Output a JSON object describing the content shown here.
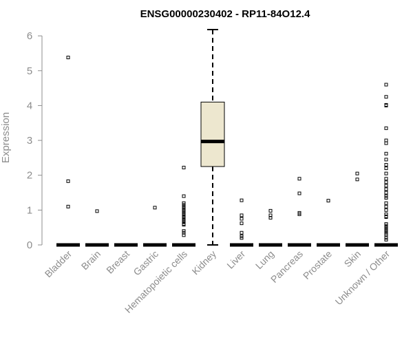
{
  "chart_data": {
    "type": "box",
    "title": "ENSG00000230402 - RP11-84O12.4",
    "xlabel": "",
    "ylabel": "Expression",
    "ylim": [
      0,
      6.2
    ],
    "yticks": [
      0,
      1,
      2,
      3,
      4,
      5,
      6
    ],
    "box_fill": "#ede7cf",
    "categories": [
      "Bladder",
      "Brain",
      "Breast",
      "Gastric",
      "Hematopoietic cells",
      "Kidney",
      "Liver",
      "Lung",
      "Pancreas",
      "Prostate",
      "Skin",
      "Unknown / Other"
    ],
    "series": [
      {
        "category": "Bladder",
        "min": 0,
        "q1": 0,
        "median": 0,
        "q3": 0,
        "max": 0,
        "outliers": [
          5.38,
          1.83,
          1.1
        ]
      },
      {
        "category": "Brain",
        "min": 0,
        "q1": 0,
        "median": 0,
        "q3": 0,
        "max": 0,
        "outliers": [
          0.97
        ]
      },
      {
        "category": "Breast",
        "min": 0,
        "q1": 0,
        "median": 0,
        "q3": 0,
        "max": 0,
        "outliers": []
      },
      {
        "category": "Gastric",
        "min": 0,
        "q1": 0,
        "median": 0,
        "q3": 0,
        "max": 0,
        "outliers": [
          1.07
        ]
      },
      {
        "category": "Hematopoietic cells",
        "min": 0,
        "q1": 0,
        "median": 0,
        "q3": 0,
        "max": 0,
        "outliers": [
          2.22,
          1.4,
          1.2,
          1.15,
          1.1,
          1.05,
          1.0,
          0.95,
          0.9,
          0.85,
          0.8,
          0.75,
          0.7,
          0.65,
          0.6,
          0.58,
          0.4,
          0.35,
          0.28
        ]
      },
      {
        "category": "Kidney",
        "min": 0,
        "q1": 2.25,
        "median": 2.97,
        "q3": 4.1,
        "max": 6.18,
        "outliers": []
      },
      {
        "category": "Liver",
        "min": 0,
        "q1": 0,
        "median": 0,
        "q3": 0,
        "max": 0,
        "outliers": [
          1.28,
          0.85,
          0.75,
          0.62,
          0.35,
          0.25,
          0.2
        ]
      },
      {
        "category": "Lung",
        "min": 0,
        "q1": 0,
        "median": 0,
        "q3": 0,
        "max": 0,
        "outliers": [
          0.98,
          0.85,
          0.78
        ]
      },
      {
        "category": "Pancreas",
        "min": 0,
        "q1": 0,
        "median": 0,
        "q3": 0,
        "max": 0,
        "outliers": [
          1.9,
          1.48,
          0.92,
          0.88
        ]
      },
      {
        "category": "Prostate",
        "min": 0,
        "q1": 0,
        "median": 0,
        "q3": 0,
        "max": 0,
        "outliers": [
          1.27
        ]
      },
      {
        "category": "Skin",
        "min": 0,
        "q1": 0,
        "median": 0,
        "q3": 0,
        "max": 0,
        "outliers": [
          2.05,
          1.88
        ]
      },
      {
        "category": "Unknown / Other",
        "min": 0,
        "q1": 0,
        "median": 0,
        "q3": 0,
        "max": 0,
        "outliers": [
          4.6,
          4.25,
          4.02,
          4.0,
          3.35,
          3.0,
          2.92,
          2.62,
          2.45,
          2.3,
          2.2,
          2.05,
          1.9,
          1.8,
          1.7,
          1.6,
          1.5,
          1.4,
          1.35,
          1.2,
          1.1,
          1.0,
          0.88,
          0.82,
          0.8,
          0.6,
          0.55,
          0.5,
          0.45,
          0.4,
          0.35,
          0.3,
          0.2,
          0.15
        ]
      }
    ],
    "grid": false,
    "legend": "none"
  }
}
